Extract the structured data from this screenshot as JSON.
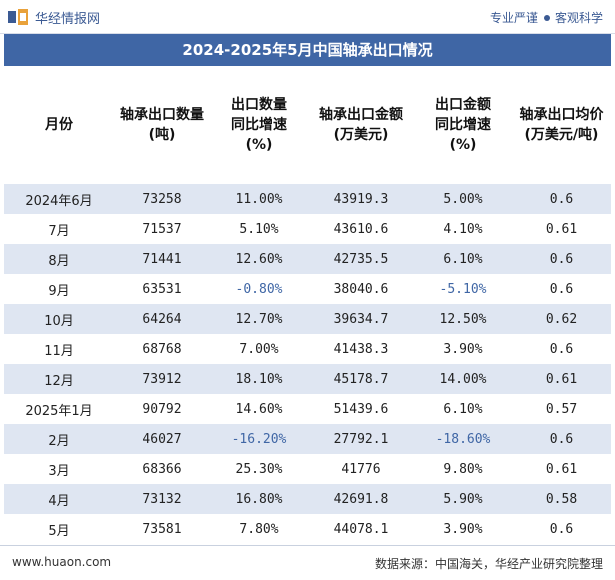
{
  "header": {
    "brand": "华经情报网",
    "slogan_left": "专业严谨",
    "slogan_right": "客观科学"
  },
  "title": "2024-2025年5月中国轴承出口情况",
  "columns": [
    "月份",
    "轴承出口数量\n(吨)",
    "出口数量\n同比增速\n(%)",
    "轴承出口金额\n(万美元)",
    "出口金额\n同比增速\n(%)",
    "轴承出口均价\n(万美元/吨)"
  ],
  "rows": [
    [
      "2024年6月",
      "73258",
      "11.00%",
      "43919.3",
      "5.00%",
      "0.6"
    ],
    [
      "7月",
      "71537",
      "5.10%",
      "43610.6",
      "4.10%",
      "0.61"
    ],
    [
      "8月",
      "71441",
      "12.60%",
      "42735.5",
      "6.10%",
      "0.6"
    ],
    [
      "9月",
      "63531",
      "-0.80%",
      "38040.6",
      "-5.10%",
      "0.6"
    ],
    [
      "10月",
      "64264",
      "12.70%",
      "39634.7",
      "12.50%",
      "0.62"
    ],
    [
      "11月",
      "68768",
      "7.00%",
      "41438.3",
      "3.90%",
      "0.6"
    ],
    [
      "12月",
      "73912",
      "18.10%",
      "45178.7",
      "14.00%",
      "0.61"
    ],
    [
      "2025年1月",
      "90792",
      "14.60%",
      "51439.6",
      "6.10%",
      "0.57"
    ],
    [
      "2月",
      "46027",
      "-16.20%",
      "27792.1",
      "-18.60%",
      "0.6"
    ],
    [
      "3月",
      "68366",
      "25.30%",
      "41776",
      "9.80%",
      "0.61"
    ],
    [
      "4月",
      "73132",
      "16.80%",
      "42691.8",
      "5.90%",
      "0.58"
    ],
    [
      "5月",
      "73581",
      "7.80%",
      "44078.1",
      "3.90%",
      "0.6"
    ]
  ],
  "footer": {
    "site": "www.huaon.com",
    "source": "数据来源：中国海关，华经产业研究院整理"
  },
  "watermark": "华经产业研究院",
  "colors": {
    "title_bg": "#3f66a5",
    "alt_row": "#dfe6f2",
    "negative": "#3f66a5"
  }
}
